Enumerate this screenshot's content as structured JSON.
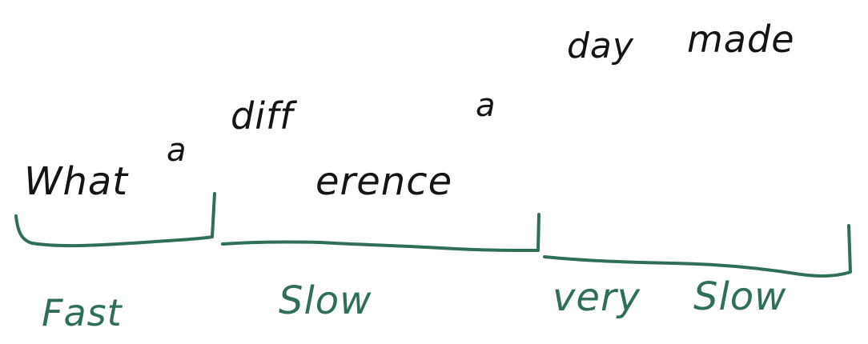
{
  "ink_colors": {
    "text": "#141414",
    "brackets": "#2f6f55"
  },
  "phrase_fragments": {
    "what": "What",
    "a1": "a",
    "diff": "diff",
    "erence": "erence",
    "a2": "a",
    "day": "day",
    "made": "made"
  },
  "segment_labels": {
    "fast": "Fast",
    "slow": "Slow",
    "very": "very",
    "slow2": "Slow"
  }
}
